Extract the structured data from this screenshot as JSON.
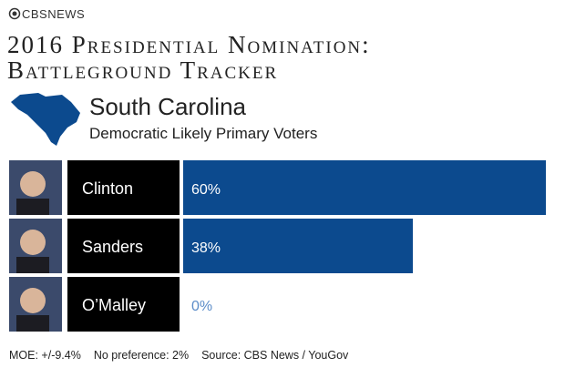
{
  "logo": "CBSNEWS",
  "chart_data": {
    "type": "bar",
    "title": [
      "2016 Presidential Nomination:",
      "Battleground Tracker"
    ],
    "region": "South Carolina",
    "subtitle": "Democratic Likely Primary Voters",
    "categories": [
      "Clinton",
      "Sanders",
      "O’Malley"
    ],
    "values": [
      60,
      38,
      0
    ],
    "value_labels": [
      "60%",
      "38%",
      "0%"
    ],
    "color": "#0c4a8e",
    "footer": [
      "MOE: +/-9.4%",
      "No preference: 2%",
      "Source: CBS News / YouGov"
    ]
  }
}
